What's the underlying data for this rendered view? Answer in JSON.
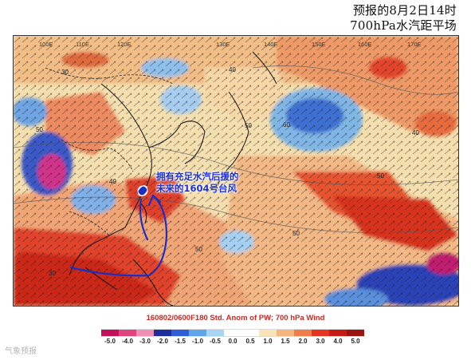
{
  "title": {
    "line1": "预报的8月2日14时",
    "line2": "700hPa水汽距平场"
  },
  "annotation": {
    "text": "拥有充足水汽后援的\n未来的1604号台风"
  },
  "caption": "160802/0600F180 Std. Anom of PW; 700 hPa Wind",
  "colorbar": {
    "labels": [
      "-5.0",
      "-4.0",
      "-3.0",
      "-2.0",
      "-1.5",
      "-1.0",
      "-0.5",
      "0.0",
      "0.5",
      "1.0",
      "1.5",
      "2.0",
      "3.0",
      "4.0",
      "5.0"
    ],
    "colors": [
      "#c2115a",
      "#e0447e",
      "#ef8fb2",
      "#1d2f9a",
      "#2f5fd6",
      "#5fa6ea",
      "#a8d6f2",
      "#ffffff",
      "#ffffff",
      "#fbe3b8",
      "#f6b57c",
      "#ef7e4b",
      "#e5341f",
      "#c61c16",
      "#9c1412"
    ]
  },
  "map_labels": {
    "lon_top": [
      "100E",
      "110E",
      "120E",
      "130E",
      "140E",
      "150E",
      "160E",
      "170E"
    ],
    "wind_numbers": [
      "30",
      "50",
      "40",
      "50",
      "60",
      "50",
      "40",
      "50",
      "30",
      "50",
      "40"
    ]
  },
  "watermark": "气象预报"
}
